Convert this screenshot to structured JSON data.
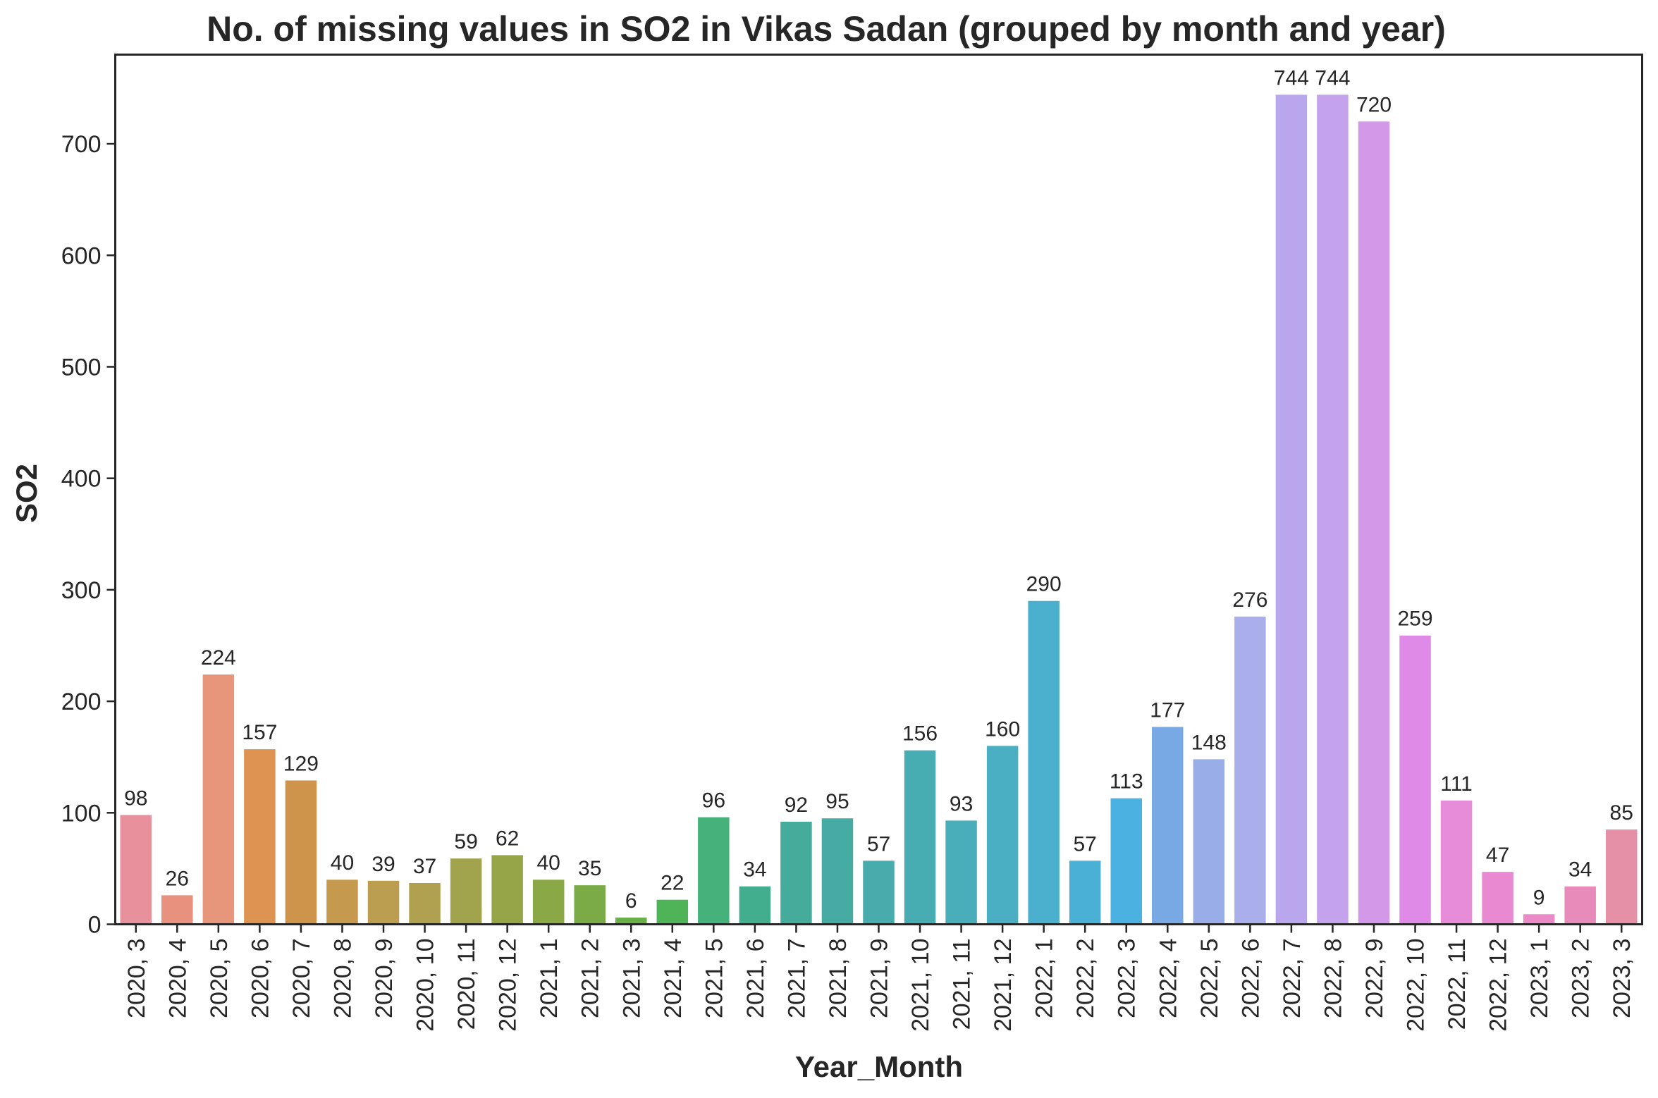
{
  "chart_data": {
    "type": "bar",
    "title": "No. of missing values in SO2 in Vikas Sadan (grouped by month and year)",
    "xlabel": "Year_Month",
    "ylabel": "SO2",
    "ylim": [
      0,
      780
    ],
    "yticks": [
      0,
      100,
      200,
      300,
      400,
      500,
      600,
      700
    ],
    "grid": false,
    "categories": [
      "2020, 3",
      "2020, 4",
      "2020, 5",
      "2020, 6",
      "2020, 7",
      "2020, 8",
      "2020, 9",
      "2020, 10",
      "2020, 11",
      "2020, 12",
      "2021, 1",
      "2021, 2",
      "2021, 3",
      "2021, 4",
      "2021, 5",
      "2021, 6",
      "2021, 7",
      "2021, 8",
      "2021, 9",
      "2021, 10",
      "2021, 11",
      "2021, 12",
      "2022, 1",
      "2022, 2",
      "2022, 3",
      "2022, 4",
      "2022, 5",
      "2022, 6",
      "2022, 7",
      "2022, 8",
      "2022, 9",
      "2022, 10",
      "2022, 11",
      "2022, 12",
      "2023, 1",
      "2023, 2",
      "2023, 3"
    ],
    "values": [
      98,
      26,
      224,
      157,
      129,
      40,
      39,
      37,
      59,
      62,
      40,
      35,
      6,
      22,
      96,
      34,
      92,
      95,
      57,
      156,
      93,
      160,
      290,
      57,
      113,
      177,
      148,
      276,
      744,
      744,
      720,
      259,
      111,
      47,
      9,
      34,
      85
    ],
    "colors": [
      "#e8909c",
      "#e8917e",
      "#e7957b",
      "#df9352",
      "#cf944c",
      "#c59a4f",
      "#bb9e50",
      "#b0a151",
      "#a1a34d",
      "#95a547",
      "#8aa845",
      "#7aab47",
      "#69b049",
      "#4fb358",
      "#44b27a",
      "#43ae8e",
      "#45ac9c",
      "#46aca3",
      "#47acab",
      "#48adb3",
      "#49aeba",
      "#4aafc3",
      "#4bb0cd",
      "#4bb0d5",
      "#4bb1e0",
      "#78a9e5",
      "#99aee8",
      "#aaaeea",
      "#b9a6ec",
      "#c4a2ec",
      "#d199e8",
      "#e08ae8",
      "#e68cd9",
      "#e889d2",
      "#ea8ac7",
      "#e98bba",
      "#e690a8"
    ]
  }
}
